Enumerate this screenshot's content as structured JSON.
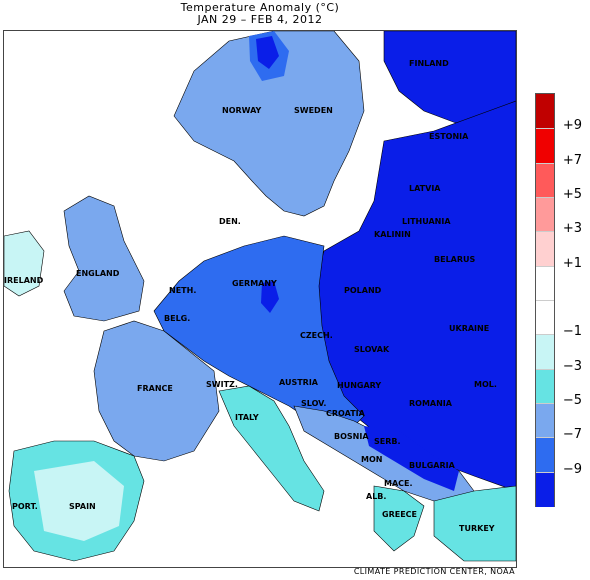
{
  "title": "Temperature Anomaly (°C)",
  "period": "JAN 29 – FEB  4, 2012",
  "credit": "CLIMATE PREDICTION CENTER, NOAA",
  "legend": {
    "colors": [
      "#c00000",
      "#f00000",
      "#ff5a5a",
      "#ff9a9a",
      "#ffd0d0",
      "#ffffff",
      "#ffffff",
      "#c8f5f5",
      "#66e3e3",
      "#7aa8ee",
      "#2e6cf0",
      "#0a1ee8"
    ],
    "labels": [
      "+9",
      "+7",
      "+5",
      "+3",
      "+1",
      "−1",
      "−3",
      "−5",
      "−7",
      "−9"
    ]
  },
  "countries": [
    {
      "name": "FINLAND"
    },
    {
      "name": "NORWAY"
    },
    {
      "name": "SWEDEN"
    },
    {
      "name": "ESTONIA"
    },
    {
      "name": "LATVIA"
    },
    {
      "name": "LITHUANIA"
    },
    {
      "name": "KALININ"
    },
    {
      "name": "BELARUS"
    },
    {
      "name": "DEN."
    },
    {
      "name": "ENGLAND"
    },
    {
      "name": "IRELAND"
    },
    {
      "name": "NETH."
    },
    {
      "name": "BELG."
    },
    {
      "name": "GERMANY"
    },
    {
      "name": "POLAND"
    },
    {
      "name": "CZECH."
    },
    {
      "name": "SLOVAK"
    },
    {
      "name": "UKRAINE"
    },
    {
      "name": "FRANCE"
    },
    {
      "name": "SWITZ."
    },
    {
      "name": "AUSTRIA"
    },
    {
      "name": "HUNGARY"
    },
    {
      "name": "MOL."
    },
    {
      "name": "ROMANIA"
    },
    {
      "name": "SLOV."
    },
    {
      "name": "CROATIA"
    },
    {
      "name": "ITALY"
    },
    {
      "name": "BOSNIA"
    },
    {
      "name": "SERB."
    },
    {
      "name": "MON"
    },
    {
      "name": "BULGARIA"
    },
    {
      "name": "MACE."
    },
    {
      "name": "ALB."
    },
    {
      "name": "GREECE"
    },
    {
      "name": "TURKEY"
    },
    {
      "name": "PORT."
    },
    {
      "name": "SPAIN"
    }
  ]
}
